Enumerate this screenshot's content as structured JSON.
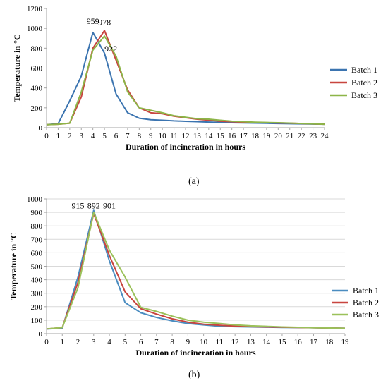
{
  "captions": {
    "a": "(a)",
    "b": "(b)"
  },
  "colors": {
    "batch1": "#3B74B0",
    "batch2": "#C8453F",
    "batch3": "#8DB548",
    "axis": "#a6a6a6",
    "text": "#000000"
  },
  "chart_data": [
    {
      "type": "line",
      "xlabel": "Duration of incineration in hours",
      "ylabel": "Temperature in °C",
      "ylim": [
        0,
        1200
      ],
      "yticks": [
        0,
        200,
        400,
        600,
        800,
        1000,
        1200
      ],
      "x": [
        0,
        1,
        2,
        3,
        4,
        5,
        6,
        7,
        8,
        9,
        10,
        11,
        12,
        13,
        14,
        15,
        16,
        17,
        18,
        19,
        20,
        21,
        22,
        23,
        24
      ],
      "grid": false,
      "legend": "right",
      "series": [
        {
          "name": "Batch 1",
          "color": "#3B74B0",
          "values": [
            30,
            40,
            270,
            520,
            959,
            750,
            340,
            150,
            95,
            80,
            75,
            68,
            64,
            60,
            56,
            53,
            50,
            48,
            46,
            44,
            42,
            40,
            38,
            36,
            35
          ]
        },
        {
          "name": "Batch 2",
          "color": "#C8453F",
          "values": [
            30,
            35,
            45,
            310,
            800,
            978,
            680,
            380,
            200,
            150,
            140,
            115,
            100,
            85,
            75,
            65,
            60,
            55,
            52,
            50,
            48,
            45,
            42,
            38,
            35
          ]
        },
        {
          "name": "Batch 3",
          "color": "#8DB548",
          "values": [
            30,
            35,
            45,
            360,
            780,
            922,
            720,
            360,
            200,
            175,
            150,
            120,
            105,
            90,
            85,
            75,
            65,
            60,
            55,
            52,
            50,
            46,
            42,
            38,
            35
          ]
        }
      ],
      "annotations": [
        {
          "x": 4,
          "y": 959,
          "text": "959"
        },
        {
          "x": 5,
          "y": 978,
          "text": "978"
        },
        {
          "x": 5,
          "y": 922,
          "text": "922"
        }
      ]
    },
    {
      "type": "line",
      "xlabel": "Duration of incineration in hours",
      "ylabel": "Temperature in °C",
      "ylim": [
        0,
        1000
      ],
      "yticks": [
        0,
        100,
        200,
        300,
        400,
        500,
        600,
        700,
        800,
        900,
        1000
      ],
      "x": [
        0,
        1,
        2,
        3,
        4,
        5,
        6,
        7,
        8,
        9,
        10,
        11,
        12,
        13,
        14,
        15,
        16,
        17,
        18,
        19
      ],
      "grid": true,
      "legend": "right",
      "series": [
        {
          "name": "Batch 1",
          "color": "#4A8CC0",
          "values": [
            35,
            40,
            420,
            915,
            540,
            230,
            155,
            120,
            95,
            75,
            65,
            55,
            52,
            50,
            48,
            46,
            45,
            44,
            42,
            40
          ]
        },
        {
          "name": "Batch 2",
          "color": "#C8453F",
          "values": [
            35,
            45,
            380,
            892,
            580,
            310,
            185,
            145,
            110,
            85,
            70,
            62,
            56,
            52,
            50,
            48,
            46,
            44,
            42,
            40
          ]
        },
        {
          "name": "Batch 3",
          "color": "#9BC15A",
          "values": [
            35,
            45,
            340,
            901,
            620,
            420,
            195,
            165,
            130,
            100,
            85,
            75,
            65,
            58,
            54,
            50,
            47,
            44,
            42,
            40
          ]
        }
      ],
      "annotations": [
        {
          "x": 2,
          "y": 950,
          "text": "915"
        },
        {
          "x": 3,
          "y": 950,
          "text": "892"
        },
        {
          "x": 4,
          "y": 950,
          "text": "901"
        }
      ]
    }
  ]
}
